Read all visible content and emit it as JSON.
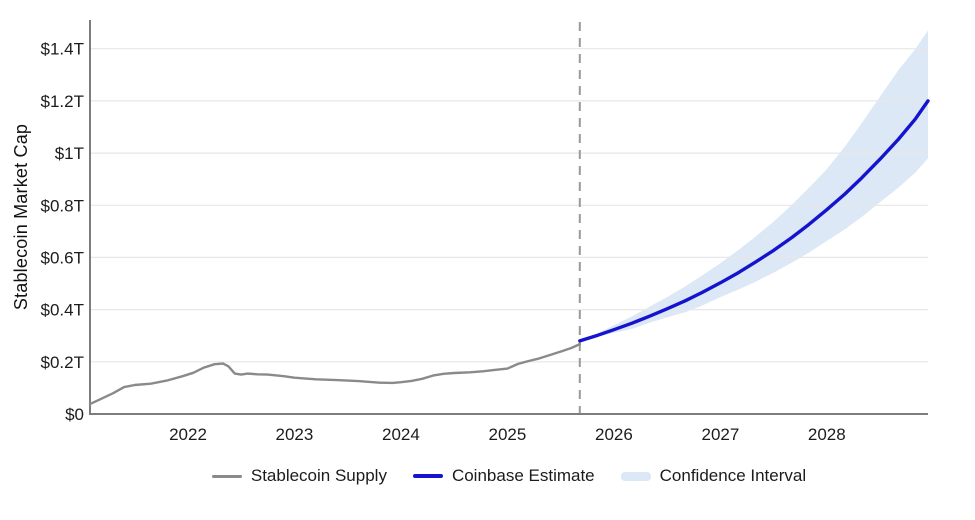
{
  "chart_data": {
    "type": "line",
    "title": "",
    "xlabel": "",
    "ylabel": "Stablecoin Market Cap",
    "x_range": [
      2021.08,
      2028.95
    ],
    "y_range": [
      0,
      1.51
    ],
    "grid": true,
    "legend_position": "bottom",
    "forecast_divider_x": 2025.68,
    "x_ticks": {
      "values": [
        2022,
        2023,
        2024,
        2025,
        2026,
        2027,
        2028
      ],
      "labels": [
        "2022",
        "2023",
        "2024",
        "2025",
        "2026",
        "2027",
        "2028"
      ]
    },
    "y_ticks": {
      "values": [
        0,
        0.2,
        0.4,
        0.6,
        0.8,
        1.0,
        1.2,
        1.4
      ],
      "labels": [
        "$0",
        "$0.2T",
        "$0.4T",
        "$0.6T",
        "$0.8T",
        "$1T",
        "$1.2T",
        "$1.4T"
      ]
    },
    "colors": {
      "historical": "#8a8a8a",
      "estimate": "#1414cf",
      "band": "#dce8f5",
      "divider": "#9a9a9a",
      "grid": "#e7e7e7",
      "axis": "#7d7d7d",
      "text": "#1c1c1c"
    },
    "series": [
      {
        "name": "Stablecoin Supply",
        "type": "line",
        "color": "#8a8a8a",
        "x": [
          2021.08,
          2021.17,
          2021.3,
          2021.4,
          2021.5,
          2021.65,
          2021.8,
          2021.95,
          2022.05,
          2022.15,
          2022.25,
          2022.33,
          2022.38,
          2022.44,
          2022.5,
          2022.56,
          2022.65,
          2022.75,
          2022.9,
          2023.0,
          2023.2,
          2023.4,
          2023.6,
          2023.8,
          2023.92,
          2024.0,
          2024.1,
          2024.2,
          2024.3,
          2024.4,
          2024.5,
          2024.65,
          2024.78,
          2024.88,
          2025.0,
          2025.1,
          2025.2,
          2025.3,
          2025.4,
          2025.5,
          2025.6,
          2025.68
        ],
        "y": [
          0.038,
          0.055,
          0.08,
          0.103,
          0.111,
          0.116,
          0.128,
          0.145,
          0.158,
          0.178,
          0.191,
          0.193,
          0.183,
          0.155,
          0.151,
          0.155,
          0.152,
          0.151,
          0.145,
          0.139,
          0.133,
          0.13,
          0.126,
          0.12,
          0.119,
          0.122,
          0.127,
          0.135,
          0.147,
          0.154,
          0.157,
          0.16,
          0.164,
          0.169,
          0.174,
          0.192,
          0.203,
          0.213,
          0.226,
          0.239,
          0.253,
          0.268
        ]
      },
      {
        "name": "Coinbase Estimate",
        "type": "line",
        "color": "#1414cf",
        "x": [
          2025.68,
          2025.85,
          2026.0,
          2026.17,
          2026.33,
          2026.5,
          2026.67,
          2026.83,
          2027.0,
          2027.17,
          2027.33,
          2027.5,
          2027.67,
          2027.83,
          2028.0,
          2028.17,
          2028.33,
          2028.5,
          2028.67,
          2028.83,
          2028.95
        ],
        "y": [
          0.28,
          0.302,
          0.323,
          0.348,
          0.374,
          0.403,
          0.434,
          0.466,
          0.503,
          0.542,
          0.582,
          0.627,
          0.676,
          0.726,
          0.783,
          0.843,
          0.906,
          0.977,
          1.052,
          1.13,
          1.2
        ]
      },
      {
        "name": "Confidence Interval",
        "type": "band",
        "color": "#dce8f5",
        "x": [
          2025.68,
          2025.85,
          2026.0,
          2026.17,
          2026.33,
          2026.5,
          2026.67,
          2026.83,
          2027.0,
          2027.17,
          2027.33,
          2027.5,
          2027.67,
          2027.83,
          2028.0,
          2028.17,
          2028.33,
          2028.5,
          2028.67,
          2028.83,
          2028.95
        ],
        "upper": [
          0.28,
          0.31,
          0.34,
          0.374,
          0.41,
          0.448,
          0.489,
          0.531,
          0.578,
          0.629,
          0.68,
          0.737,
          0.801,
          0.866,
          0.938,
          1.025,
          1.116,
          1.217,
          1.317,
          1.398,
          1.47
        ],
        "lower": [
          0.28,
          0.296,
          0.311,
          0.326,
          0.349,
          0.371,
          0.39,
          0.416,
          0.448,
          0.477,
          0.507,
          0.542,
          0.58,
          0.618,
          0.663,
          0.708,
          0.756,
          0.812,
          0.867,
          0.925,
          0.98
        ]
      }
    ]
  }
}
